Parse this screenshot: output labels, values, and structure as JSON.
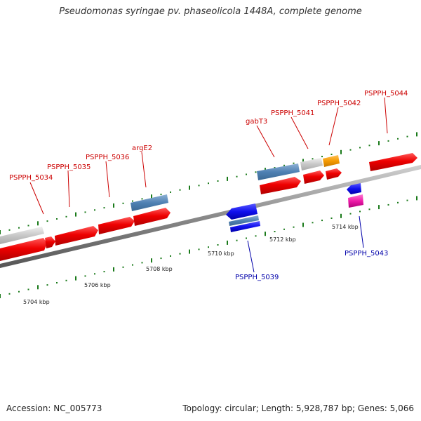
{
  "title": "Pseudomonas syringae pv. phaseolicola 1448A, complete genome",
  "footer": {
    "accession": "Accession: NC_005773",
    "stats": "Topology: circular; Length: 5,928,787 bp; Genes: 5,066"
  },
  "colors": {
    "forward_gene": "#ee0000",
    "label_forward": "#cc0000",
    "label_reverse": "#0000aa",
    "backbone": "#8a8a8a",
    "ticks": "#1a7a1a"
  },
  "scale_labels": [
    {
      "text": "5704 kbp"
    },
    {
      "text": "5706 kbp"
    },
    {
      "text": "5708 kbp"
    },
    {
      "text": "5710 kbp"
    },
    {
      "text": "5712 kbp"
    },
    {
      "text": "5714 kbp"
    }
  ],
  "gene_labels": [
    {
      "text": "PSPPH_5034",
      "strand": "forward"
    },
    {
      "text": "PSPPH_5035",
      "strand": "forward"
    },
    {
      "text": "PSPPH_5036",
      "strand": "forward"
    },
    {
      "text": "argE2",
      "strand": "forward"
    },
    {
      "text": "gabT3",
      "strand": "forward"
    },
    {
      "text": "PSPPH_5041",
      "strand": "forward"
    },
    {
      "text": "PSPPH_5042",
      "strand": "forward"
    },
    {
      "text": "PSPPH_5044",
      "strand": "forward"
    },
    {
      "text": "PSPPH_5039",
      "strand": "reverse"
    },
    {
      "text": "PSPPH_5043",
      "strand": "reverse"
    }
  ]
}
